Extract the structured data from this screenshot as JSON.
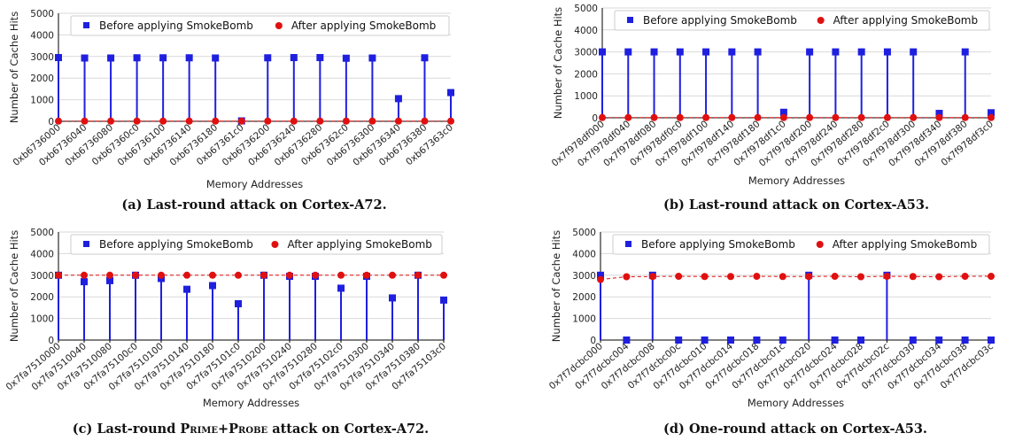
{
  "colors": {
    "before": "#1f1fe0",
    "after": "#e01010",
    "grid": "#d9d9d9"
  },
  "chart_data": [
    {
      "type": "scatter",
      "caption": "(a) Last-round attack on Cortex-A72.",
      "xlabel": "Memory Addresses",
      "ylabel": "Number of Cache Hits",
      "ylim": [
        0,
        5000
      ],
      "yticks": [
        "0",
        "1000",
        "2000",
        "3000",
        "4000",
        "5000"
      ],
      "legend_position": "top",
      "categories": [
        "0xb6736000",
        "0xb6736040",
        "0xb6736080",
        "0xb67360c0",
        "0xb6736100",
        "0xb6736140",
        "0xb6736180",
        "0xb67361c0",
        "0xb6736200",
        "0xb6736240",
        "0xb6736280",
        "0xb67362c0",
        "0xb6736300",
        "0xb6736340",
        "0xb6736380",
        "0xb67363c0"
      ],
      "series": [
        {
          "name": "Before applying SmokeBomb",
          "values": [
            2950,
            2930,
            2930,
            2940,
            2940,
            2940,
            2930,
            20,
            2940,
            2950,
            2950,
            2920,
            2930,
            1050,
            2940,
            1330
          ]
        },
        {
          "name": "After applying SmokeBomb",
          "values": [
            10,
            10,
            10,
            10,
            10,
            10,
            10,
            10,
            10,
            10,
            10,
            10,
            10,
            10,
            10,
            10
          ]
        }
      ]
    },
    {
      "type": "scatter",
      "caption": "(b) Last-round attack on Cortex-A53.",
      "xlabel": "Memory Addresses",
      "ylabel": "Number of Cache Hits",
      "ylim": [
        0,
        5000
      ],
      "yticks": [
        "0",
        "1000",
        "2000",
        "3000",
        "4000",
        "5000"
      ],
      "legend_position": "top",
      "categories": [
        "0x7f978df000",
        "0x7f978df040",
        "0x7f978df080",
        "0x7f978df0c0",
        "0x7f978df100",
        "0x7f978df140",
        "0x7f978df180",
        "0x7f978df1c0",
        "0x7f978df200",
        "0x7f978df240",
        "0x7f978df280",
        "0x7f978df2c0",
        "0x7f978df300",
        "0x7f978df340",
        "0x7f978df380",
        "0x7f978df3c0"
      ],
      "series": [
        {
          "name": "Before applying SmokeBomb",
          "values": [
            3000,
            3000,
            3000,
            3000,
            3000,
            3000,
            3000,
            250,
            3000,
            3000,
            3000,
            3000,
            3000,
            200,
            3000,
            230
          ]
        },
        {
          "name": "After applying SmokeBomb",
          "values": [
            10,
            10,
            10,
            10,
            10,
            10,
            10,
            10,
            10,
            10,
            10,
            10,
            10,
            10,
            10,
            10
          ]
        }
      ]
    },
    {
      "type": "scatter",
      "caption_parts": [
        "(c) Last-round ",
        "Prime+Probe",
        " attack on Cortex-A72."
      ],
      "xlabel": "Memory Addresses",
      "ylabel": "Number of Cache Hits",
      "ylim": [
        0,
        5000
      ],
      "yticks": [
        "0",
        "1000",
        "2000",
        "3000",
        "4000",
        "5000"
      ],
      "legend_position": "top",
      "categories": [
        "0x7fa7510000",
        "0x7fa7510040",
        "0x7fa7510080",
        "0x7fa75100c0",
        "0x7fa7510100",
        "0x7fa7510140",
        "0x7fa7510180",
        "0x7fa75101c0",
        "0x7fa7510200",
        "0x7fa7510240",
        "0x7fa7510280",
        "0x7fa75102c0",
        "0x7fa7510300",
        "0x7fa7510340",
        "0x7fa7510380",
        "0x7fa75103c0"
      ],
      "series": [
        {
          "name": "Before applying SmokeBomb",
          "values": [
            3000,
            2700,
            2750,
            3000,
            2850,
            2350,
            2520,
            1680,
            3000,
            2950,
            2950,
            2400,
            2950,
            1950,
            3000,
            1850
          ]
        },
        {
          "name": "After applying SmokeBomb",
          "values": [
            3000,
            3000,
            3000,
            3000,
            3000,
            3000,
            3000,
            3000,
            3000,
            3000,
            3000,
            3000,
            3000,
            3000,
            3000,
            3000
          ]
        }
      ]
    },
    {
      "type": "scatter",
      "caption": "(d) One-round attack on Cortex-A53.",
      "xlabel": "Memory Addresses",
      "ylabel": "Number of Cache Hits",
      "ylim": [
        0,
        5000
      ],
      "yticks": [
        "0",
        "1000",
        "2000",
        "3000",
        "4000",
        "5000"
      ],
      "legend_position": "top",
      "categories": [
        "0x7f7dcbc000",
        "0x7f7dcbc004",
        "0x7f7dcbc008",
        "0x7f7dcbc00c",
        "0x7f7dcbc010",
        "0x7f7dcbc014",
        "0x7f7dcbc018",
        "0x7f7dcbc01c",
        "0x7f7dcbc020",
        "0x7f7dcbc024",
        "0x7f7dcbc028",
        "0x7f7dcbc02c",
        "0x7f7dcbc030",
        "0x7f7dcbc034",
        "0x7f7dcbc038",
        "0x7f7dcbc03c"
      ],
      "series": [
        {
          "name": "Before applying SmokeBomb",
          "values": [
            3000,
            0,
            3000,
            0,
            0,
            0,
            0,
            0,
            3000,
            0,
            0,
            3000,
            0,
            0,
            0,
            0
          ]
        },
        {
          "name": "After applying SmokeBomb",
          "values": [
            2800,
            2930,
            2940,
            2950,
            2940,
            2940,
            2950,
            2940,
            2940,
            2950,
            2930,
            2950,
            2940,
            2930,
            2950,
            2950
          ]
        }
      ]
    }
  ]
}
